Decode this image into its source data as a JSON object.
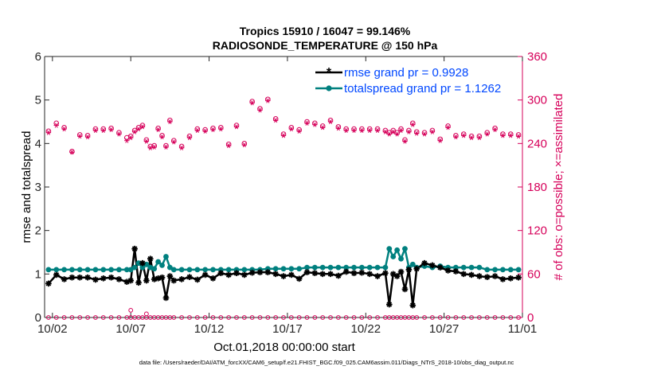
{
  "chart_data": {
    "type": "line",
    "title_line1": "Tropics 15910 / 16047 = 99.146%",
    "title_line2": "RADIOSONDE_TEMPERATURE @ 150 hPa",
    "xlabel": "Oct.01,2018 00:00:00 start",
    "ylabel_left": "rmse and totalspread",
    "ylabel_right": "# of obs: o=possible; ×=assimilated",
    "footer": "data file: /Users/raeder/DAI/ATM_forcXX/CAM6_setup/f.e21.FHIST_BGC.f09_025.CAM6assim.011/Diags_NTrS_2018-10/obs_diag_output.nc",
    "xlim": [
      1.5,
      32
    ],
    "ylim_left": [
      0,
      6
    ],
    "ylim_right": [
      0,
      360
    ],
    "xticks": [
      {
        "v": 2,
        "label": "10/02"
      },
      {
        "v": 7,
        "label": "10/07"
      },
      {
        "v": 12,
        "label": "10/12"
      },
      {
        "v": 17,
        "label": "10/17"
      },
      {
        "v": 22,
        "label": "10/22"
      },
      {
        "v": 27,
        "label": "10/27"
      },
      {
        "v": 32,
        "label": "11/01"
      }
    ],
    "yticks_left": [
      "0",
      "1",
      "2",
      "3",
      "4",
      "5",
      "6"
    ],
    "yticks_right": [
      "0",
      "60",
      "120",
      "180",
      "240",
      "300",
      "360"
    ],
    "colors": {
      "rmse": "#000000",
      "spread": "#00807f",
      "obs": "#d6005a",
      "legend_text": "#0047ff"
    },
    "legend": [
      {
        "label": "rmse grand pr = 0.9928",
        "series": "rmse"
      },
      {
        "label": "totalspread grand pr = 1.1262",
        "series": "spread"
      }
    ],
    "x": [
      1.75,
      2.25,
      2.75,
      3.25,
      3.75,
      4.25,
      4.75,
      5.25,
      5.75,
      6.25,
      6.75,
      7.0,
      7.25,
      7.5,
      7.75,
      8.0,
      8.25,
      8.5,
      8.75,
      9.0,
      9.25,
      9.5,
      9.75,
      10.25,
      10.75,
      11.25,
      11.75,
      12.25,
      12.75,
      13.25,
      13.75,
      14.25,
      14.75,
      15.25,
      15.75,
      16.25,
      16.75,
      17.25,
      17.75,
      18.25,
      18.75,
      19.25,
      19.75,
      20.25,
      20.75,
      21.25,
      21.75,
      22.25,
      22.75,
      23.25,
      23.5,
      23.75,
      24.0,
      24.25,
      24.5,
      24.75,
      25.0,
      25.25,
      25.75,
      26.25,
      26.75,
      27.25,
      27.75,
      28.25,
      28.75,
      29.25,
      29.75,
      30.25,
      30.75,
      31.25,
      31.75
    ],
    "series": [
      {
        "name": "rmse",
        "values": [
          0.78,
          0.98,
          0.88,
          0.92,
          0.92,
          0.92,
          0.87,
          0.9,
          0.92,
          0.88,
          0.82,
          0.85,
          1.58,
          0.8,
          1.25,
          0.85,
          1.35,
          0.88,
          0.9,
          0.92,
          0.45,
          0.95,
          0.85,
          0.88,
          0.93,
          0.87,
          0.98,
          0.9,
          1.02,
          0.98,
          1.02,
          0.98,
          1.03,
          1.04,
          1.04,
          1.0,
          0.95,
          0.98,
          0.89,
          1.04,
          1.02,
          1.0,
          1.0,
          0.96,
          1.05,
          1.02,
          1.03,
          1.0,
          0.95,
          1.02,
          0.3,
          1.0,
          0.95,
          1.05,
          0.65,
          1.1,
          0.28,
          1.12,
          1.25,
          1.2,
          1.15,
          1.08,
          1.06,
          1.0,
          0.98,
          0.95,
          0.93,
          0.95,
          0.88,
          0.9,
          0.92
        ]
      },
      {
        "name": "spread",
        "values": [
          1.1,
          1.1,
          1.1,
          1.1,
          1.1,
          1.1,
          1.1,
          1.1,
          1.1,
          1.1,
          1.1,
          1.1,
          1.15,
          1.25,
          1.15,
          1.22,
          1.15,
          1.12,
          1.28,
          1.2,
          1.4,
          1.15,
          1.1,
          1.1,
          1.1,
          1.1,
          1.1,
          1.1,
          1.1,
          1.1,
          1.1,
          1.1,
          1.1,
          1.1,
          1.12,
          1.12,
          1.12,
          1.12,
          1.12,
          1.15,
          1.15,
          1.15,
          1.15,
          1.15,
          1.15,
          1.15,
          1.15,
          1.15,
          1.15,
          1.15,
          1.58,
          1.4,
          1.55,
          1.35,
          1.58,
          1.15,
          1.22,
          1.15,
          1.18,
          1.15,
          1.18,
          1.15,
          1.15,
          1.15,
          1.15,
          1.15,
          1.1,
          1.1,
          1.1,
          1.1,
          1.1
        ]
      },
      {
        "name": "possible",
        "values": [
          257,
          268,
          262,
          229,
          252,
          251,
          260,
          260,
          261,
          255,
          248,
          250,
          258,
          262,
          265,
          245,
          236,
          237,
          261,
          251,
          237,
          272,
          244,
          236,
          250,
          260,
          259,
          261,
          262,
          239,
          265,
          240,
          298,
          288,
          301,
          274,
          253,
          262,
          259,
          270,
          268,
          264,
          272,
          263,
          260,
          260,
          260,
          260,
          260,
          258,
          255,
          258,
          255,
          260,
          245,
          258,
          268,
          256,
          255,
          258,
          246,
          264,
          251,
          253,
          250,
          250,
          255,
          261,
          253,
          253,
          252
        ]
      },
      {
        "name": "assimilated",
        "values": [
          255,
          265,
          260,
          228,
          250,
          249,
          258,
          258,
          259,
          253,
          244,
          248,
          256,
          260,
          263,
          243,
          234,
          235,
          259,
          249,
          235,
          270,
          242,
          234,
          248,
          258,
          257,
          259,
          260,
          237,
          263,
          238,
          296,
          286,
          299,
          272,
          251,
          260,
          257,
          268,
          266,
          262,
          270,
          261,
          258,
          258,
          258,
          258,
          258,
          256,
          253,
          256,
          253,
          258,
          243,
          256,
          266,
          254,
          253,
          256,
          244,
          262,
          249,
          251,
          248,
          248,
          253,
          259,
          251,
          251,
          250
        ]
      }
    ]
  }
}
